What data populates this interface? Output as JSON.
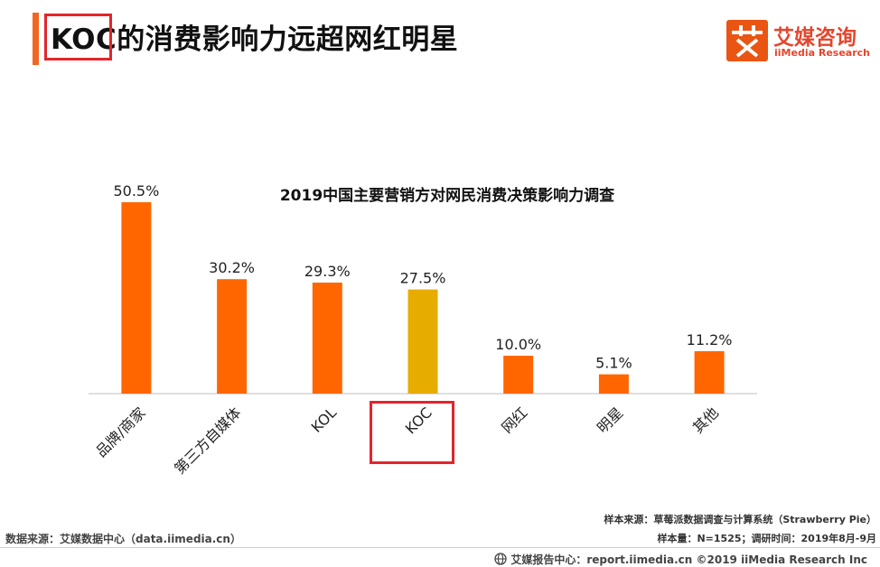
{
  "header": {
    "title": "KOC的消费影响力远超网红明星",
    "accent_color": "#f26522",
    "highlight_color": "#e3242b"
  },
  "logo": {
    "cn": "艾媒咨询",
    "en": "iiMedia Research",
    "color": "#ea5514"
  },
  "chart_data": {
    "type": "bar",
    "title": "2019中国主要营销方对网民消费决策影响力调查",
    "categories": [
      "品牌/商家",
      "第三方自媒体",
      "KOL",
      "KOC",
      "网红",
      "明星",
      "其他"
    ],
    "values": [
      50.5,
      30.2,
      29.3,
      27.5,
      10.0,
      5.1,
      11.2
    ],
    "labels": [
      "50.5%",
      "30.2%",
      "29.3%",
      "27.5%",
      "10.0%",
      "5.1%",
      "11.2%"
    ],
    "colors": [
      "#ff6600",
      "#ff6600",
      "#ff6600",
      "#e6ac00",
      "#ff6600",
      "#ff6600",
      "#ff6600"
    ],
    "highlight_category": "KOC",
    "xlabel": "",
    "ylabel": "",
    "ylim": [
      0,
      50.5
    ],
    "grid": false,
    "legend": "none"
  },
  "sources": {
    "left": "数据来源：艾媒数据中心（data.iimedia.cn）",
    "right_line1": "样本来源：草莓派数据调查与计算系统（Strawberry Pie）",
    "right_line2": "样本量：N=1525；调研时间：2019年8月-9月"
  },
  "footer": {
    "text": "艾媒报告中心：report.iimedia.cn ©2019  iiMedia Research  Inc",
    "icon": "globe-icon"
  }
}
